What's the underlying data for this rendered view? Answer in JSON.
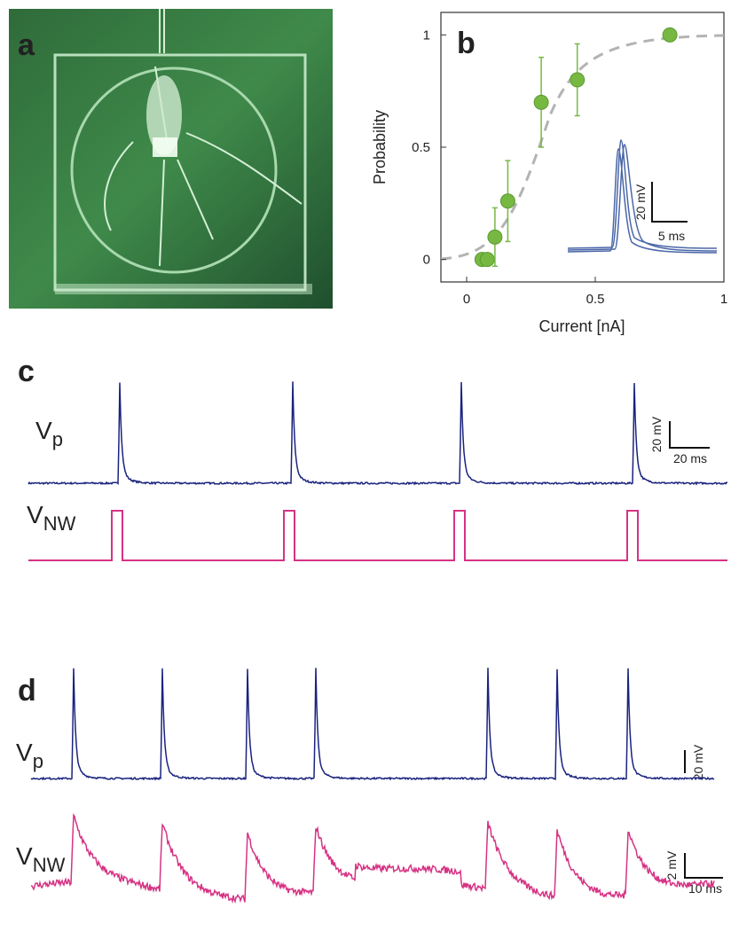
{
  "panel_a": {
    "label": "a"
  },
  "chart_data": {
    "type": "scatter",
    "label": "b",
    "x_label": "Current [nA]",
    "y_label": "Probability",
    "x": [
      0.06,
      0.08,
      0.11,
      0.16,
      0.29,
      0.43,
      0.79
    ],
    "values": [
      0,
      0,
      0.1,
      0.26,
      0.7,
      0.8,
      1
    ],
    "errors": [
      0,
      0,
      0.13,
      0.18,
      0.2,
      0.16,
      0
    ],
    "xlim": [
      -0.1,
      1
    ],
    "ylim": [
      -0.1,
      1.1
    ],
    "xticks": [
      0,
      0.5,
      1
    ],
    "yticks": [
      0,
      0.5,
      1
    ],
    "color": "#77b843",
    "inset_scale": [
      "20 mV",
      "5 ms"
    ]
  },
  "panel_c": {
    "label": "c",
    "traces": [
      {
        "main": "V",
        "sub": "p"
      },
      {
        "main": "V",
        "sub": "NW"
      }
    ],
    "scale": [
      "20 mV",
      "20 ms"
    ]
  },
  "panel_d": {
    "label": "d",
    "traces": [
      {
        "main": "V",
        "sub": "p"
      },
      {
        "main": "V",
        "sub": "NW"
      }
    ],
    "scale": [
      "20 mV",
      "2 mV",
      "10 ms"
    ]
  }
}
